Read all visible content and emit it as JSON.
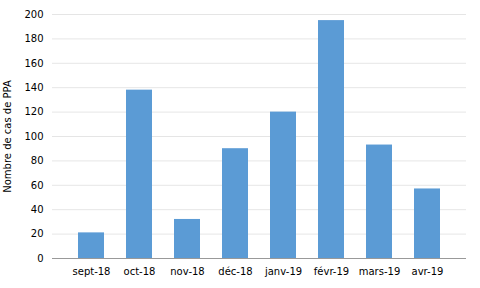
{
  "chart_data": {
    "type": "bar",
    "categories": [
      "sept-18",
      "oct-18",
      "nov-18",
      "déc-18",
      "janv-19",
      "févr-19",
      "mars-19",
      "avr-19"
    ],
    "values": [
      21,
      138,
      32,
      90,
      120,
      195,
      93,
      57
    ],
    "color": "#5b9bd5",
    "ylabel": "Nombre de cas de PPA",
    "ylim": [
      0,
      200
    ],
    "yticks": [
      0,
      20,
      40,
      60,
      80,
      100,
      120,
      140,
      160,
      180,
      200
    ],
    "grid": true
  }
}
